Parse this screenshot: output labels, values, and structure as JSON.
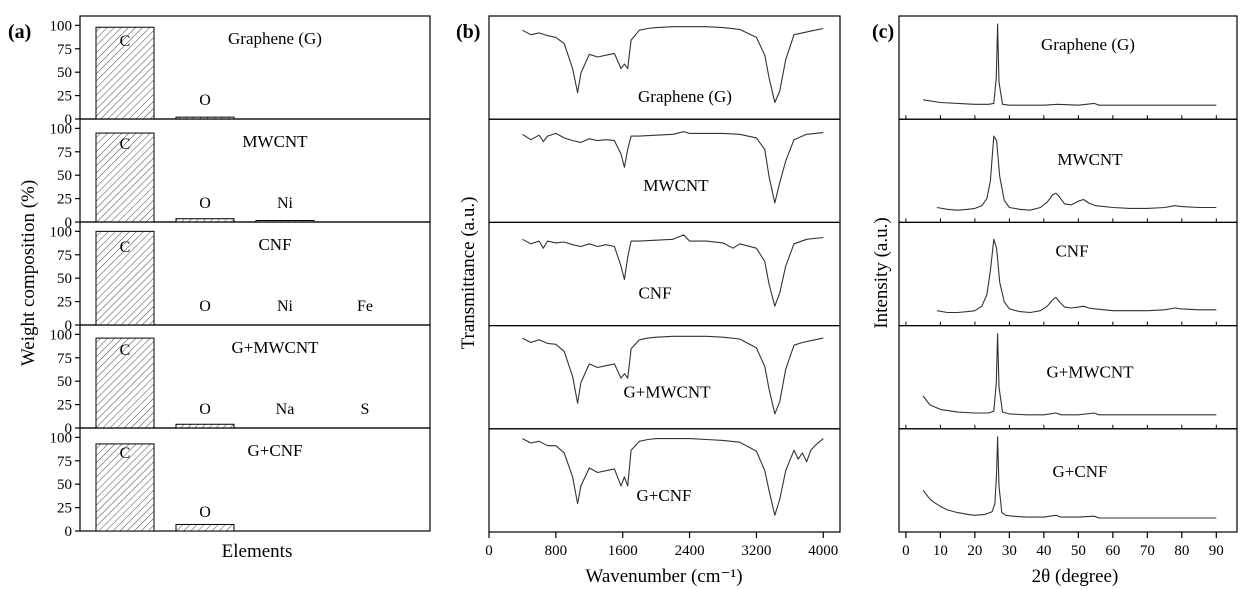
{
  "panel_labels": [
    "(a)",
    "(b)",
    "(c)"
  ],
  "chart_data": [
    {
      "type": "bar",
      "panel": "(a)",
      "xlabel": "Elements",
      "ylabel": "Weight composition (%)",
      "ylim": [
        0,
        110
      ],
      "yticks": [
        "0",
        "25",
        "50",
        "75",
        "100"
      ],
      "subplots": [
        {
          "name": "Graphene (G)",
          "bars": [
            {
              "label": "C",
              "value": 98
            },
            {
              "label": "O",
              "value": 2
            }
          ]
        },
        {
          "name": "MWCNT",
          "bars": [
            {
              "label": "C",
              "value": 95
            },
            {
              "label": "O",
              "value": 3.5
            },
            {
              "label": "Ni",
              "value": 1.5
            }
          ]
        },
        {
          "name": "CNF",
          "bars": [
            {
              "label": "C",
              "value": 100
            },
            {
              "label": "O",
              "value": 0
            },
            {
              "label": "Ni",
              "value": 0
            },
            {
              "label": "Fe",
              "value": 0
            }
          ]
        },
        {
          "name": "G+MWCNT",
          "bars": [
            {
              "label": "C",
              "value": 96
            },
            {
              "label": "O",
              "value": 4
            },
            {
              "label": "Na",
              "value": 0
            },
            {
              "label": "S",
              "value": 0
            }
          ]
        },
        {
          "name": "G+CNF",
          "bars": [
            {
              "label": "C",
              "value": 93
            },
            {
              "label": "O",
              "value": 7
            }
          ]
        }
      ]
    },
    {
      "type": "line",
      "panel": "(b)",
      "xlabel": "Wavenumber (cm⁻¹)",
      "ylabel": "Transmittance (a.u.)",
      "xlim": [
        0,
        4200
      ],
      "xticks": [
        "0",
        "800",
        "1600",
        "2400",
        "3200",
        "4000"
      ],
      "series": [
        {
          "name": "Graphene (G)",
          "x": [
            400,
            500,
            600,
            700,
            800,
            900,
            1000,
            1060,
            1100,
            1200,
            1300,
            1400,
            1500,
            1580,
            1620,
            1660,
            1700,
            1800,
            1900,
            2000,
            2200,
            2400,
            2600,
            2800,
            3000,
            3200,
            3300,
            3350,
            3420,
            3480,
            3550,
            3650,
            3750,
            3850,
            4000
          ],
          "y": [
            0.93,
            0.88,
            0.9,
            0.87,
            0.85,
            0.78,
            0.5,
            0.23,
            0.45,
            0.66,
            0.63,
            0.65,
            0.67,
            0.5,
            0.55,
            0.5,
            0.82,
            0.93,
            0.95,
            0.96,
            0.97,
            0.97,
            0.97,
            0.96,
            0.94,
            0.85,
            0.65,
            0.4,
            0.12,
            0.25,
            0.6,
            0.88,
            0.9,
            0.92,
            0.95
          ]
        },
        {
          "name": "MWCNT",
          "x": [
            400,
            500,
            600,
            650,
            700,
            800,
            900,
            1000,
            1100,
            1200,
            1300,
            1400,
            1500,
            1580,
            1620,
            1660,
            1700,
            1800,
            2000,
            2200,
            2330,
            2400,
            2600,
            2800,
            3000,
            3200,
            3300,
            3350,
            3420,
            3480,
            3550,
            3650,
            3800,
            4000
          ],
          "y": [
            0.92,
            0.86,
            0.91,
            0.84,
            0.9,
            0.93,
            0.88,
            0.85,
            0.83,
            0.87,
            0.85,
            0.86,
            0.85,
            0.7,
            0.55,
            0.75,
            0.9,
            0.9,
            0.91,
            0.92,
            0.95,
            0.93,
            0.93,
            0.93,
            0.92,
            0.88,
            0.75,
            0.45,
            0.15,
            0.38,
            0.62,
            0.86,
            0.92,
            0.94
          ]
        },
        {
          "name": "CNF",
          "x": [
            400,
            500,
            600,
            650,
            700,
            800,
            900,
            1000,
            1100,
            1200,
            1300,
            1400,
            1500,
            1580,
            1620,
            1660,
            1700,
            1800,
            2000,
            2200,
            2330,
            2400,
            2600,
            2800,
            2920,
            3000,
            3200,
            3300,
            3350,
            3420,
            3480,
            3550,
            3650,
            3800,
            4000
          ],
          "y": [
            0.9,
            0.85,
            0.88,
            0.8,
            0.88,
            0.86,
            0.87,
            0.84,
            0.82,
            0.85,
            0.82,
            0.84,
            0.82,
            0.6,
            0.45,
            0.7,
            0.88,
            0.88,
            0.89,
            0.9,
            0.95,
            0.88,
            0.88,
            0.86,
            0.8,
            0.85,
            0.8,
            0.65,
            0.4,
            0.15,
            0.3,
            0.6,
            0.85,
            0.9,
            0.92
          ]
        },
        {
          "name": "G+MWCNT",
          "x": [
            400,
            500,
            600,
            700,
            800,
            900,
            1000,
            1060,
            1100,
            1200,
            1300,
            1400,
            1500,
            1580,
            1620,
            1660,
            1700,
            1800,
            1900,
            2000,
            2200,
            2400,
            2600,
            2800,
            3000,
            3200,
            3300,
            3350,
            3420,
            3480,
            3550,
            3650,
            3750,
            3850,
            4000
          ],
          "y": [
            0.95,
            0.9,
            0.93,
            0.89,
            0.88,
            0.8,
            0.52,
            0.22,
            0.45,
            0.66,
            0.62,
            0.64,
            0.66,
            0.5,
            0.55,
            0.5,
            0.83,
            0.93,
            0.95,
            0.96,
            0.97,
            0.97,
            0.97,
            0.96,
            0.94,
            0.84,
            0.63,
            0.38,
            0.1,
            0.24,
            0.6,
            0.87,
            0.9,
            0.92,
            0.95
          ]
        },
        {
          "name": "G+CNF",
          "x": [
            400,
            500,
            600,
            700,
            800,
            900,
            1000,
            1060,
            1100,
            1200,
            1300,
            1400,
            1500,
            1580,
            1620,
            1660,
            1700,
            1800,
            1900,
            2000,
            2200,
            2400,
            2600,
            2800,
            3000,
            3200,
            3300,
            3350,
            3420,
            3480,
            3550,
            3650,
            3700,
            3750,
            3800,
            3850,
            3900,
            4000
          ],
          "y": [
            0.98,
            0.93,
            0.95,
            0.9,
            0.9,
            0.82,
            0.55,
            0.25,
            0.45,
            0.65,
            0.6,
            0.62,
            0.64,
            0.45,
            0.55,
            0.45,
            0.85,
            0.95,
            0.97,
            0.98,
            0.98,
            0.98,
            0.97,
            0.96,
            0.94,
            0.84,
            0.62,
            0.4,
            0.12,
            0.3,
            0.62,
            0.85,
            0.75,
            0.82,
            0.72,
            0.85,
            0.9,
            0.98
          ]
        }
      ]
    },
    {
      "type": "line",
      "panel": "(c)",
      "xlabel": "2θ (degree)",
      "ylabel": "Intensity (a.u.)",
      "xlim": [
        -2,
        96
      ],
      "xticks": [
        "0",
        "10",
        "20",
        "30",
        "40",
        "50",
        "60",
        "70",
        "80",
        "90"
      ],
      "series": [
        {
          "name": "Graphene (G)",
          "x": [
            5,
            10,
            15,
            20,
            24,
            25.5,
            26.2,
            26.6,
            27.0,
            28,
            30,
            40,
            44,
            50,
            54.6,
            56,
            60,
            70,
            80,
            90
          ],
          "y": [
            0.15,
            0.12,
            0.11,
            0.1,
            0.1,
            0.11,
            0.4,
            1.0,
            0.35,
            0.1,
            0.09,
            0.09,
            0.1,
            0.09,
            0.11,
            0.09,
            0.09,
            0.09,
            0.09,
            0.09
          ]
        },
        {
          "name": "MWCNT",
          "x": [
            9,
            12,
            15,
            18,
            20,
            22,
            23.5,
            24.5,
            25.5,
            26.3,
            27.2,
            28.5,
            30,
            33,
            36,
            39,
            41,
            42.5,
            43.5,
            44.5,
            46,
            48,
            50,
            51.5,
            53,
            55,
            60,
            65,
            70,
            75,
            78,
            80,
            85,
            90
          ],
          "y": [
            0.1,
            0.08,
            0.07,
            0.08,
            0.09,
            0.12,
            0.2,
            0.4,
            0.9,
            0.85,
            0.45,
            0.18,
            0.1,
            0.08,
            0.07,
            0.1,
            0.16,
            0.24,
            0.26,
            0.22,
            0.14,
            0.13,
            0.17,
            0.19,
            0.15,
            0.12,
            0.1,
            0.09,
            0.09,
            0.1,
            0.12,
            0.11,
            0.1,
            0.1
          ]
        },
        {
          "name": "CNF",
          "x": [
            9,
            12,
            15,
            18,
            20,
            22,
            23.5,
            24.5,
            25.5,
            26.3,
            27.2,
            28.5,
            30,
            33,
            36,
            39,
            41,
            42.5,
            43.5,
            44.5,
            46,
            48,
            50,
            51.5,
            53,
            55,
            60,
            65,
            70,
            75,
            78,
            80,
            85,
            90
          ],
          "y": [
            0.1,
            0.08,
            0.08,
            0.09,
            0.1,
            0.15,
            0.28,
            0.55,
            0.9,
            0.8,
            0.42,
            0.2,
            0.12,
            0.09,
            0.08,
            0.1,
            0.15,
            0.22,
            0.25,
            0.2,
            0.14,
            0.13,
            0.14,
            0.15,
            0.13,
            0.12,
            0.1,
            0.1,
            0.1,
            0.11,
            0.13,
            0.12,
            0.11,
            0.11
          ]
        },
        {
          "name": "G+MWCNT",
          "x": [
            5,
            7,
            10,
            15,
            20,
            24,
            25.5,
            26.2,
            26.6,
            27.0,
            28,
            30,
            35,
            40,
            43.5,
            45,
            50,
            54.6,
            56,
            60,
            70,
            80,
            90
          ],
          "y": [
            0.3,
            0.2,
            0.15,
            0.12,
            0.11,
            0.11,
            0.13,
            0.45,
            1.0,
            0.4,
            0.12,
            0.1,
            0.09,
            0.09,
            0.11,
            0.09,
            0.09,
            0.11,
            0.09,
            0.09,
            0.09,
            0.09,
            0.09
          ]
        },
        {
          "name": "G+CNF",
          "x": [
            5,
            6,
            7,
            8,
            10,
            12,
            15,
            18,
            20,
            23,
            25,
            25.8,
            26.3,
            26.6,
            27.0,
            27.8,
            29,
            31,
            35,
            40,
            43.5,
            45,
            50,
            54.6,
            56,
            60,
            70,
            80,
            90
          ],
          "y": [
            0.4,
            0.35,
            0.3,
            0.27,
            0.22,
            0.18,
            0.15,
            0.13,
            0.12,
            0.13,
            0.16,
            0.25,
            0.6,
            1.0,
            0.45,
            0.15,
            0.12,
            0.11,
            0.1,
            0.1,
            0.12,
            0.1,
            0.1,
            0.11,
            0.09,
            0.09,
            0.09,
            0.09,
            0.09
          ]
        }
      ]
    }
  ]
}
